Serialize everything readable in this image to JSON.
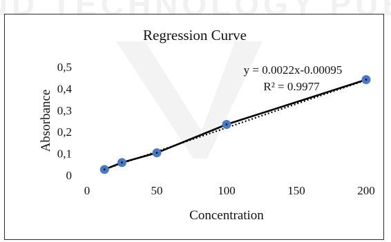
{
  "watermark_text": "SCIENCE AND TECHNOLOGY PUBLICATIONS",
  "chart_data": {
    "type": "scatter",
    "title": "Regression Curve",
    "xlabel": "Concentration",
    "ylabel": "Absorbance",
    "xlim": [
      0,
      200
    ],
    "ylim": [
      0,
      0.5
    ],
    "x_ticks": [
      0,
      50,
      100,
      150,
      200
    ],
    "x_tick_labels": [
      "0",
      "50",
      "100",
      "150",
      "200"
    ],
    "y_ticks": [
      0,
      0.1,
      0.2,
      0.3,
      0.4,
      0.5
    ],
    "y_tick_labels": [
      "0",
      "0,1",
      "0,2",
      "0,3",
      "0,4",
      "0,5"
    ],
    "series": [
      {
        "x": [
          12.5,
          25,
          50,
          100,
          200
        ],
        "y": [
          0.026,
          0.058,
          0.103,
          0.234,
          0.441
        ]
      }
    ],
    "trendline": {
      "type": "linear",
      "slope": 0.0022,
      "intercept": -0.00095,
      "style": "dotted",
      "equation": "y = 0.0022x-0.00095",
      "r_squared": "R² = 0.9977"
    },
    "grid": false,
    "legend": "none",
    "colors": {
      "marker": "#4a7ac3",
      "line": "#000000",
      "trendline": "#000000"
    }
  }
}
